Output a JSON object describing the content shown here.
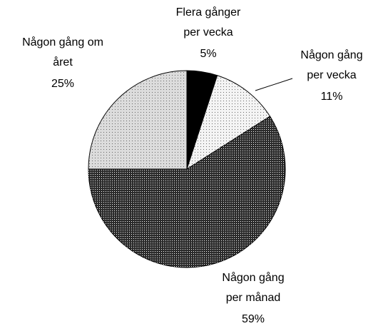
{
  "chart_data": {
    "type": "pie",
    "categories": [
      [
        "Flera gånger",
        "per vecka"
      ],
      [
        "Någon gång",
        "per vecka"
      ],
      [
        "Någon gång",
        "per månad"
      ],
      [
        "Någon gång om",
        "året"
      ]
    ],
    "values": [
      5,
      11,
      59,
      25
    ],
    "value_labels": [
      "5%",
      "11%",
      "59%",
      "25%"
    ],
    "colors": [
      "#000000",
      "#f4f4f4",
      "#2b2b2b",
      "#dcdcdc"
    ]
  }
}
